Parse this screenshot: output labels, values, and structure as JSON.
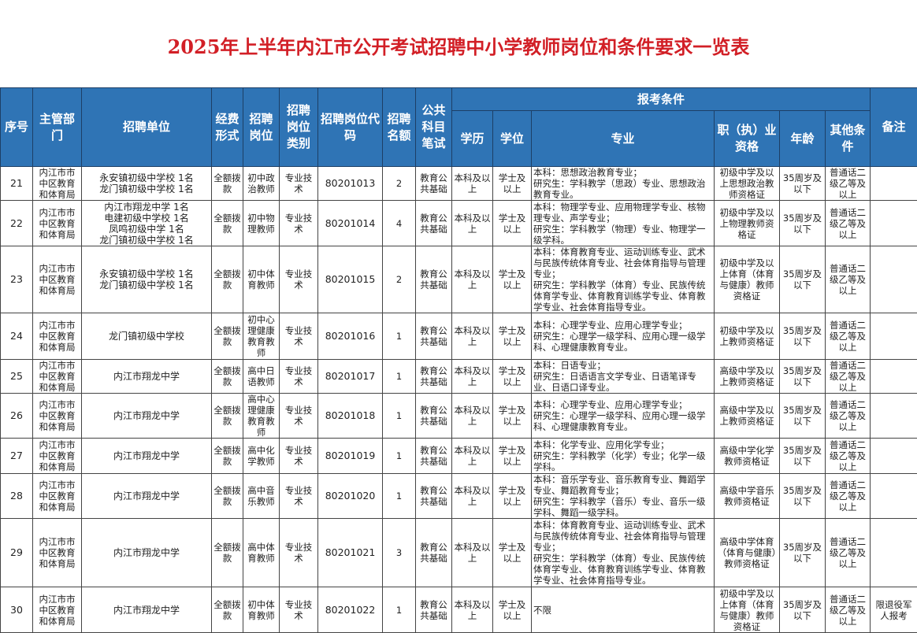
{
  "title": "2025年上半年内江市公开考试招聘中小学教师岗位和条件要求一览表",
  "header": {
    "seq": "序号",
    "dept": "主管部门",
    "unit": "招聘单位",
    "funding": "经费形式",
    "post": "招聘岗位",
    "category": "招聘岗位类别",
    "code": "招聘岗位代码",
    "quota": "招聘名额",
    "exam": "公共科目笔试",
    "conditions": "报考条件",
    "education": "学历",
    "degree": "学位",
    "major": "专业",
    "qualification": "职（执）业资格",
    "age": "年龄",
    "other": "其他条件",
    "remark": "备注"
  },
  "header_color": "#2f74b5",
  "title_color": "#d21f26",
  "rows": [
    {
      "seq": "21",
      "dept": "内江市市中区教育和体育局",
      "unit": "永安镇初级中学校  1名\n龙门镇初级中学校  1名",
      "funding": "全额拨款",
      "post": "初中政治教师",
      "category": "专业技术",
      "code": "80201013",
      "quota": "2",
      "exam": "教育公共基础",
      "education": "本科及以上",
      "degree": "学士及以上",
      "major": "本科：思想政治教育专业；\n研究生：学科教学（思政）专业、思想政治教育专业。",
      "qualification": "初级中学及以上思想政治教师资格证",
      "age": "35周岁及以下",
      "other": "普通话二级乙等及以上",
      "remark": ""
    },
    {
      "seq": "22",
      "dept": "内江市市中区教育和体育局",
      "unit": "内江市翔龙中学  1名\n电建初级中学校  1名\n凤鸣初级中学  1名\n龙门镇初级中学校  1名",
      "funding": "全额拨款",
      "post": "初中物理教师",
      "category": "专业技术",
      "code": "80201014",
      "quota": "4",
      "exam": "教育公共基础",
      "education": "本科及以上",
      "degree": "学士及以上",
      "major": "本科：物理学专业、应用物理学专业、核物理专业、声学专业；\n研究生：学科教学（物理）专业、物理学一级学科。",
      "qualification": "初级中学及以上物理教师资格证",
      "age": "35周岁及以下",
      "other": "普通话二级乙等及以上",
      "remark": ""
    },
    {
      "seq": "23",
      "dept": "内江市市中区教育和体育局",
      "unit": "永安镇初级中学校  1名\n龙门镇初级中学校  1名",
      "funding": "全额拨款",
      "post": "初中体育教师",
      "category": "专业技术",
      "code": "80201015",
      "quota": "2",
      "exam": "教育公共基础",
      "education": "本科及以上",
      "degree": "学士及以上",
      "major": "本科：体育教育专业、运动训练专业、武术与民族传统体育专业、社会体育指导与管理专业；\n研究生：学科教学（体育）专业、民族传统体育学专业、体育教育训练学专业、体育教学专业、社会体育指导专业。",
      "qualification": "初级中学及以上体育（体育与健康）教师资格证",
      "age": "35周岁及以下",
      "other": "普通话二级乙等及以上",
      "remark": ""
    },
    {
      "seq": "24",
      "dept": "内江市市中区教育和体育局",
      "unit": "龙门镇初级中学校",
      "funding": "全额拨款",
      "post": "初中心理健康教育教师",
      "category": "专业技术",
      "code": "80201016",
      "quota": "1",
      "exam": "教育公共基础",
      "education": "本科及以上",
      "degree": "学士及以上",
      "major": "本科：心理学专业、应用心理学专业；\n研究生：心理学一级学科、应用心理一级学科、心理健康教育专业。",
      "qualification": "初级中学及以上教师资格证",
      "age": "35周岁及以下",
      "other": "普通话二级乙等及以上",
      "remark": ""
    },
    {
      "seq": "25",
      "dept": "内江市市中区教育和体育局",
      "unit": "内江市翔龙中学",
      "funding": "全额拨款",
      "post": "高中日语教师",
      "category": "专业技术",
      "code": "80201017",
      "quota": "1",
      "exam": "教育公共基础",
      "education": "本科及以上",
      "degree": "学士及以上",
      "major": "本科：日语专业；\n研究生：日语语言文学专业、日语笔译专业、日语口译专业。",
      "qualification": "高级中学及以上教师资格证",
      "age": "35周岁及以下",
      "other": "普通话二级乙等及以上",
      "remark": ""
    },
    {
      "seq": "26",
      "dept": "内江市市中区教育和体育局",
      "unit": "内江市翔龙中学",
      "funding": "全额拨款",
      "post": "高中心理健康教育教师",
      "category": "专业技术",
      "code": "80201018",
      "quota": "1",
      "exam": "教育公共基础",
      "education": "本科及以上",
      "degree": "学士及以上",
      "major": "本科：心理学专业、应用心理学专业；\n研究生：心理学一级学科、应用心理一级学科、心理健康教育专业。",
      "qualification": "高级中学及以上教师资格证",
      "age": "35周岁及以下",
      "other": "普通话二级乙等及以上",
      "remark": ""
    },
    {
      "seq": "27",
      "dept": "内江市市中区教育和体育局",
      "unit": "内江市翔龙中学",
      "funding": "全额拨款",
      "post": "高中化学教师",
      "category": "专业技术",
      "code": "80201019",
      "quota": "1",
      "exam": "教育公共基础",
      "education": "本科及以上",
      "degree": "学士及以上",
      "major": "本科：化学专业、应用化学专业；\n研究生：学科教学（化学）专业；化学一级学科。",
      "qualification": "高级中学化学教师资格证",
      "age": "35周岁及以下",
      "other": "普通话二级乙等及以上",
      "remark": ""
    },
    {
      "seq": "28",
      "dept": "内江市市中区教育和体育局",
      "unit": "内江市翔龙中学",
      "funding": "全额拨款",
      "post": "高中音乐教师",
      "category": "专业技术",
      "code": "80201020",
      "quota": "1",
      "exam": "教育公共基础",
      "education": "本科及以上",
      "degree": "学士及以上",
      "major": "本科：音乐学专业、音乐教育专业、舞蹈学专业、舞蹈教育专业；\n研究生：学科教学（音乐）专业、音乐一级学科、舞蹈一级学科。",
      "qualification": "高级中学音乐教师资格证",
      "age": "35周岁及以下",
      "other": "普通话二级乙等及以上",
      "remark": ""
    },
    {
      "seq": "29",
      "dept": "内江市市中区教育和体育局",
      "unit": "内江市翔龙中学",
      "funding": "全额拨款",
      "post": "高中体育教师",
      "category": "专业技术",
      "code": "80201021",
      "quota": "3",
      "exam": "教育公共基础",
      "education": "本科及以上",
      "degree": "学士及以上",
      "major": "本科：体育教育专业、运动训练专业、武术与民族传统体育专业、社会体育指导与管理专业；\n研究生：学科教学（体育）专业、民族传统体育学专业、体育教育训练学专业、体育教学专业、社会体育指导专业。",
      "qualification": "高级中学体育（体育与健康）教师资格证",
      "age": "35周岁及以下",
      "other": "普通话二级乙等及以上",
      "remark": ""
    },
    {
      "seq": "30",
      "dept": "内江市市中区教育和体育局",
      "unit": "内江市翔龙中学",
      "funding": "全额拨款",
      "post": "初中体育教师",
      "category": "专业技术",
      "code": "80201022",
      "quota": "1",
      "exam": "教育公共基础",
      "education": "本科及以上",
      "degree": "学士及以上",
      "major": "不限",
      "qualification": "初级中学及以上体育（体育与健康）教师资格证",
      "age": "35周岁及以下",
      "other": "普通话二级乙等及以上",
      "remark": "限退役军人报考"
    }
  ]
}
